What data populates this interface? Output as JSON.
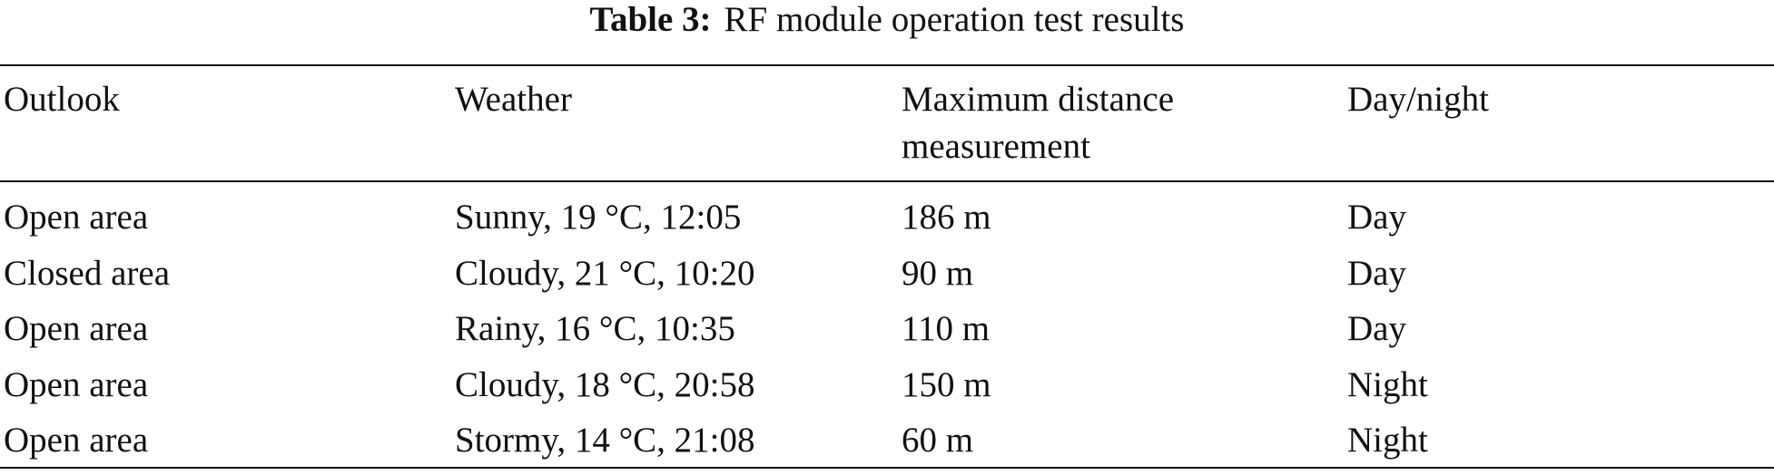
{
  "caption": {
    "label": "Table 3:",
    "text": "RF module operation test results"
  },
  "table": {
    "header": [
      "Outlook",
      "Weather",
      "Maximum distance measurement",
      "Day/night"
    ],
    "rows": [
      [
        "Open area",
        "Sunny, 19 °C, 12:05",
        "186 m",
        "Day"
      ],
      [
        "Closed area",
        "Cloudy, 21 °C, 10:20",
        "90 m",
        "Day"
      ],
      [
        "Open area",
        "Rainy, 16 °C, 10:35",
        "110 m",
        "Day"
      ],
      [
        "Open area",
        "Cloudy, 18 °C, 20:58",
        "150 m",
        "Night"
      ],
      [
        "Open area",
        "Stormy, 14 °C, 21:08",
        "60 m",
        "Night"
      ]
    ]
  }
}
